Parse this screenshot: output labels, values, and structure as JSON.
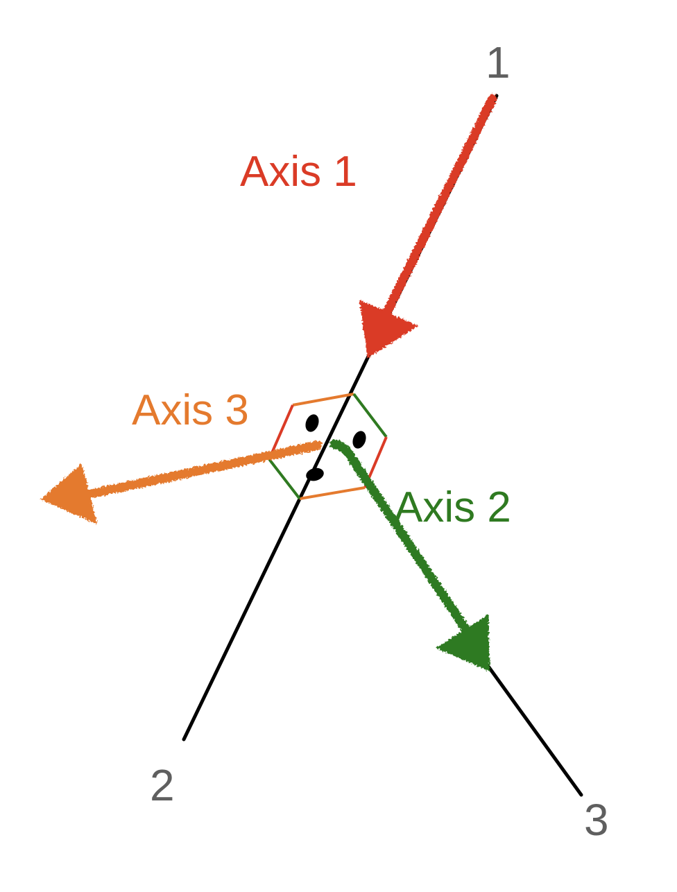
{
  "colors": {
    "axis1": "#da3b26",
    "axis2": "#2f7a21",
    "axis3": "#e47a2e",
    "line": "#000000",
    "end_label": "#5f5f5f"
  },
  "endpoints": {
    "one": "1",
    "two": "2",
    "three": "3"
  },
  "axes": {
    "axis1": {
      "label": "Axis 1"
    },
    "axis2": {
      "label": "Axis 2"
    },
    "axis3": {
      "label": "Axis 3"
    }
  }
}
